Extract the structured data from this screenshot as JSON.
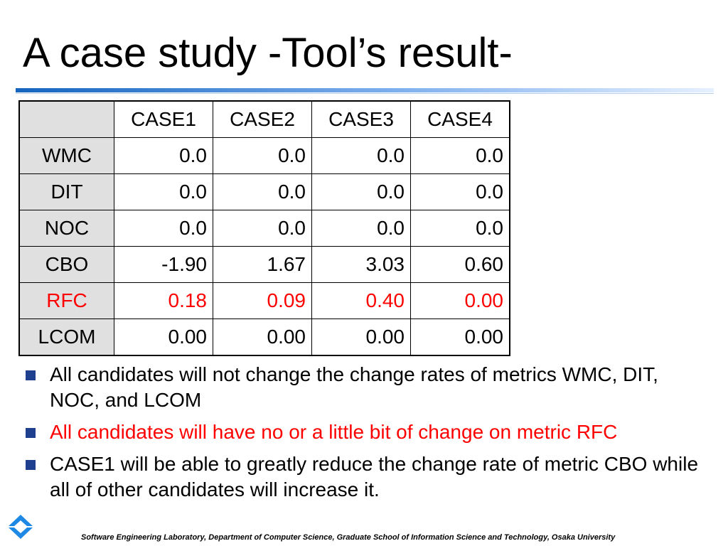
{
  "slide": {
    "title": "A case study -Tool’s result-",
    "footer": "Software Engineering Laboratory,  Department of Computer Science,  Graduate School of Information Science and Technology,  Osaka University"
  },
  "colors": {
    "highlight": "#ff0000",
    "bullet": "#1f3f8f",
    "rule_start": "#1565c0",
    "rule_end": "#e6f0ff",
    "logo": "#1e88e5"
  },
  "table": {
    "columns": [
      "",
      "CASE1",
      "CASE2",
      "CASE3",
      "CASE4"
    ],
    "rows": [
      {
        "metric": "WMC",
        "values": [
          "0.0",
          "0.0",
          "0.0",
          "0.0"
        ],
        "highlight": false
      },
      {
        "metric": "DIT",
        "values": [
          "0.0",
          "0.0",
          "0.0",
          "0.0"
        ],
        "highlight": false
      },
      {
        "metric": "NOC",
        "values": [
          "0.0",
          "0.0",
          "0.0",
          "0.0"
        ],
        "highlight": false
      },
      {
        "metric": "CBO",
        "values": [
          "-1.90",
          "1.67",
          "3.03",
          "0.60"
        ],
        "highlight": false
      },
      {
        "metric": "RFC",
        "values": [
          "0.18",
          "0.09",
          "0.40",
          "0.00"
        ],
        "highlight": true
      },
      {
        "metric": "LCOM",
        "values": [
          "0.00",
          "0.00",
          "0.00",
          "0.00"
        ],
        "highlight": false
      }
    ]
  },
  "bullets": [
    {
      "text": "All candidates will not change the change rates of metrics WMC, DIT, NOC, and LCOM",
      "highlight": false
    },
    {
      "text": "All candidates will have no or a little bit of change on metric RFC",
      "highlight": true
    },
    {
      "text": "CASE1 will be able to greatly reduce the change rate of metric CBO while all of other candidates will increase it.",
      "highlight": false
    }
  ],
  "icons": {
    "bullet": "square-bullet-icon",
    "logo": "university-logo-icon"
  }
}
